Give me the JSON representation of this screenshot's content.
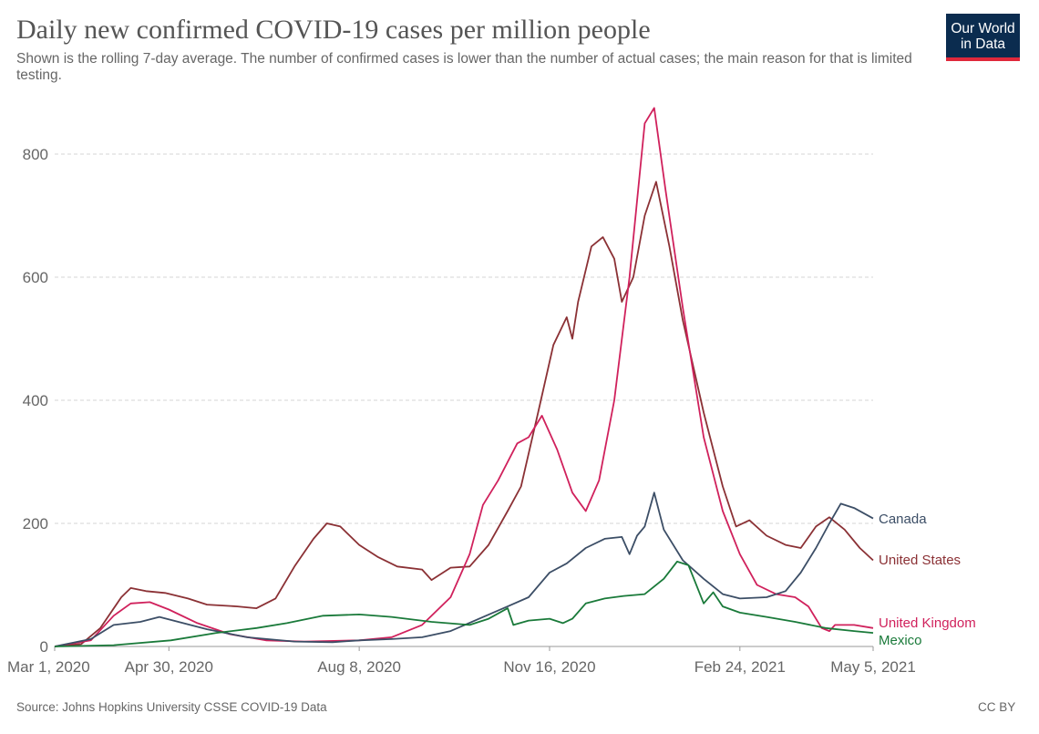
{
  "title": "Daily new confirmed COVID-19 cases per million people",
  "subtitle": "Shown is the rolling 7-day average. The number of confirmed cases is lower than the number of actual cases; the main reason for that is limited testing.",
  "logo": {
    "line1": "Our World",
    "line2": "in Data",
    "bg_color": "#0b2c4f",
    "accent_color": "#e0283b"
  },
  "source": "Source: Johns Hopkins University CSSE COVID-19 Data",
  "license": "CC BY",
  "chart_data": {
    "type": "line",
    "title": "Daily new confirmed COVID-19 cases per million people",
    "xlabel": "",
    "ylabel": "",
    "x_ticks": [
      "Mar 1, 2020",
      "Apr 30, 2020",
      "Aug 8, 2020",
      "Nov 16, 2020",
      "Feb 24, 2021",
      "May 5, 2021"
    ],
    "x_range": [
      "2020-03-01",
      "2021-05-05"
    ],
    "y_ticks": [
      0,
      200,
      400,
      600,
      800
    ],
    "ylim": [
      0,
      880
    ],
    "grid": "horizontal dashed",
    "legend": "line-end labels",
    "series": [
      {
        "name": "United States",
        "color": "#8b3135",
        "points": [
          [
            "2020-03-01",
            0
          ],
          [
            "2020-03-15",
            4
          ],
          [
            "2020-03-25",
            30
          ],
          [
            "2020-04-05",
            80
          ],
          [
            "2020-04-10",
            95
          ],
          [
            "2020-04-18",
            90
          ],
          [
            "2020-04-28",
            87
          ],
          [
            "2020-05-10",
            78
          ],
          [
            "2020-05-20",
            68
          ],
          [
            "2020-06-05",
            65
          ],
          [
            "2020-06-15",
            62
          ],
          [
            "2020-06-25",
            78
          ],
          [
            "2020-07-05",
            130
          ],
          [
            "2020-07-15",
            175
          ],
          [
            "2020-07-22",
            200
          ],
          [
            "2020-07-29",
            195
          ],
          [
            "2020-08-08",
            165
          ],
          [
            "2020-08-18",
            145
          ],
          [
            "2020-08-28",
            130
          ],
          [
            "2020-09-10",
            125
          ],
          [
            "2020-09-15",
            108
          ],
          [
            "2020-09-25",
            128
          ],
          [
            "2020-10-05",
            130
          ],
          [
            "2020-10-15",
            165
          ],
          [
            "2020-10-25",
            220
          ],
          [
            "2020-11-01",
            260
          ],
          [
            "2020-11-10",
            380
          ],
          [
            "2020-11-18",
            490
          ],
          [
            "2020-11-25",
            535
          ],
          [
            "2020-11-28",
            500
          ],
          [
            "2020-12-01",
            560
          ],
          [
            "2020-12-08",
            650
          ],
          [
            "2020-12-14",
            665
          ],
          [
            "2020-12-20",
            630
          ],
          [
            "2020-12-24",
            560
          ],
          [
            "2020-12-30",
            600
          ],
          [
            "2021-01-05",
            700
          ],
          [
            "2021-01-11",
            755
          ],
          [
            "2021-01-18",
            650
          ],
          [
            "2021-01-25",
            530
          ],
          [
            "2021-02-05",
            380
          ],
          [
            "2021-02-15",
            260
          ],
          [
            "2021-02-22",
            195
          ],
          [
            "2021-03-01",
            205
          ],
          [
            "2021-03-10",
            180
          ],
          [
            "2021-03-20",
            165
          ],
          [
            "2021-03-28",
            160
          ],
          [
            "2021-04-05",
            195
          ],
          [
            "2021-04-12",
            210
          ],
          [
            "2021-04-20",
            190
          ],
          [
            "2021-04-28",
            160
          ],
          [
            "2021-05-05",
            140
          ]
        ]
      },
      {
        "name": "United Kingdom",
        "color": "#d0215c",
        "points": [
          [
            "2020-03-01",
            0
          ],
          [
            "2020-03-20",
            10
          ],
          [
            "2020-04-01",
            50
          ],
          [
            "2020-04-10",
            70
          ],
          [
            "2020-04-20",
            72
          ],
          [
            "2020-04-30",
            60
          ],
          [
            "2020-05-15",
            38
          ],
          [
            "2020-06-01",
            20
          ],
          [
            "2020-06-20",
            10
          ],
          [
            "2020-07-10",
            8
          ],
          [
            "2020-08-08",
            10
          ],
          [
            "2020-08-25",
            15
          ],
          [
            "2020-09-10",
            35
          ],
          [
            "2020-09-25",
            80
          ],
          [
            "2020-10-05",
            150
          ],
          [
            "2020-10-12",
            230
          ],
          [
            "2020-10-20",
            270
          ],
          [
            "2020-10-30",
            330
          ],
          [
            "2020-11-05",
            340
          ],
          [
            "2020-11-12",
            375
          ],
          [
            "2020-11-20",
            320
          ],
          [
            "2020-11-28",
            250
          ],
          [
            "2020-12-05",
            220
          ],
          [
            "2020-12-12",
            270
          ],
          [
            "2020-12-20",
            400
          ],
          [
            "2020-12-28",
            600
          ],
          [
            "2021-01-05",
            850
          ],
          [
            "2021-01-10",
            875
          ],
          [
            "2021-01-16",
            740
          ],
          [
            "2021-01-25",
            550
          ],
          [
            "2021-02-05",
            340
          ],
          [
            "2021-02-15",
            220
          ],
          [
            "2021-02-24",
            150
          ],
          [
            "2021-03-05",
            100
          ],
          [
            "2021-03-15",
            85
          ],
          [
            "2021-03-25",
            80
          ],
          [
            "2021-04-01",
            65
          ],
          [
            "2021-04-08",
            30
          ],
          [
            "2021-04-12",
            25
          ],
          [
            "2021-04-15",
            35
          ],
          [
            "2021-04-25",
            35
          ],
          [
            "2021-05-05",
            30
          ]
        ]
      },
      {
        "name": "Canada",
        "color": "#3c4e66",
        "points": [
          [
            "2020-03-01",
            0
          ],
          [
            "2020-03-20",
            12
          ],
          [
            "2020-04-01",
            35
          ],
          [
            "2020-04-15",
            40
          ],
          [
            "2020-04-25",
            48
          ],
          [
            "2020-05-05",
            40
          ],
          [
            "2020-05-20",
            28
          ],
          [
            "2020-06-10",
            15
          ],
          [
            "2020-07-05",
            8
          ],
          [
            "2020-07-25",
            7
          ],
          [
            "2020-08-08",
            10
          ],
          [
            "2020-08-25",
            12
          ],
          [
            "2020-09-10",
            15
          ],
          [
            "2020-09-25",
            25
          ],
          [
            "2020-10-10",
            45
          ],
          [
            "2020-10-25",
            65
          ],
          [
            "2020-11-05",
            80
          ],
          [
            "2020-11-16",
            120
          ],
          [
            "2020-11-25",
            135
          ],
          [
            "2020-12-05",
            160
          ],
          [
            "2020-12-15",
            175
          ],
          [
            "2020-12-24",
            178
          ],
          [
            "2020-12-28",
            150
          ],
          [
            "2021-01-01",
            180
          ],
          [
            "2021-01-05",
            195
          ],
          [
            "2021-01-10",
            250
          ],
          [
            "2021-01-15",
            190
          ],
          [
            "2021-01-25",
            140
          ],
          [
            "2021-02-05",
            110
          ],
          [
            "2021-02-15",
            85
          ],
          [
            "2021-02-24",
            78
          ],
          [
            "2021-03-10",
            80
          ],
          [
            "2021-03-20",
            90
          ],
          [
            "2021-03-28",
            120
          ],
          [
            "2021-04-05",
            160
          ],
          [
            "2021-04-12",
            200
          ],
          [
            "2021-04-18",
            232
          ],
          [
            "2021-04-25",
            225
          ],
          [
            "2021-05-05",
            208
          ]
        ]
      },
      {
        "name": "Mexico",
        "color": "#1a7a3a",
        "points": [
          [
            "2020-03-01",
            0
          ],
          [
            "2020-04-01",
            2
          ],
          [
            "2020-05-01",
            10
          ],
          [
            "2020-05-25",
            22
          ],
          [
            "2020-06-15",
            30
          ],
          [
            "2020-07-01",
            38
          ],
          [
            "2020-07-20",
            50
          ],
          [
            "2020-08-08",
            52
          ],
          [
            "2020-08-25",
            48
          ],
          [
            "2020-09-15",
            40
          ],
          [
            "2020-10-05",
            35
          ],
          [
            "2020-10-15",
            45
          ],
          [
            "2020-10-25",
            62
          ],
          [
            "2020-10-28",
            35
          ],
          [
            "2020-11-05",
            42
          ],
          [
            "2020-11-16",
            45
          ],
          [
            "2020-11-23",
            38
          ],
          [
            "2020-11-28",
            45
          ],
          [
            "2020-12-05",
            70
          ],
          [
            "2020-12-15",
            78
          ],
          [
            "2020-12-25",
            82
          ],
          [
            "2021-01-05",
            85
          ],
          [
            "2021-01-15",
            110
          ],
          [
            "2021-01-22",
            138
          ],
          [
            "2021-01-28",
            132
          ],
          [
            "2021-02-05",
            70
          ],
          [
            "2021-02-10",
            88
          ],
          [
            "2021-02-15",
            65
          ],
          [
            "2021-02-24",
            55
          ],
          [
            "2021-03-10",
            48
          ],
          [
            "2021-03-25",
            40
          ],
          [
            "2021-04-10",
            30
          ],
          [
            "2021-04-25",
            25
          ],
          [
            "2021-05-05",
            22
          ]
        ]
      }
    ]
  }
}
